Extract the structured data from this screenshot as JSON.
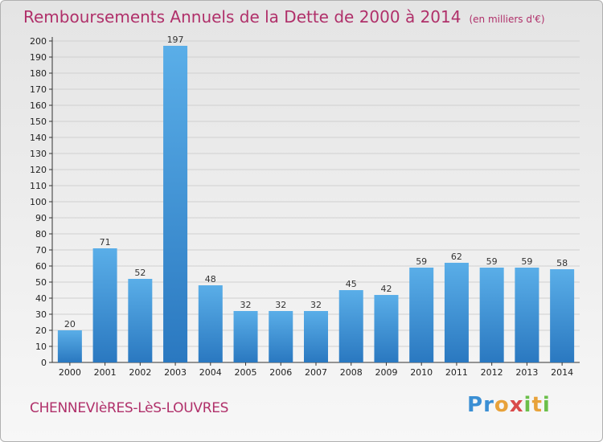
{
  "header": {
    "title": "Remboursements Annuels de la Dette de 2000 à 2014",
    "unit": "(en milliers d'€)"
  },
  "footer": {
    "commune": "CHENNEVIèRES-LèS-LOUVRES",
    "logo": [
      "P",
      "r",
      "o",
      "x",
      "i",
      "t",
      "i"
    ]
  },
  "colors": {
    "title": "#b0306a",
    "bar_top": "#5aaee8",
    "bar_bottom": "#2a78c0",
    "grid": "#d0d0d0"
  },
  "chart_data": {
    "type": "bar",
    "title": "Remboursements Annuels de la Dette de 2000 à 2014",
    "categories": [
      "2000",
      "2001",
      "2002",
      "2003",
      "2004",
      "2005",
      "2006",
      "2007",
      "2008",
      "2009",
      "2010",
      "2011",
      "2012",
      "2013",
      "2014"
    ],
    "values": [
      20,
      71,
      52,
      197,
      48,
      32,
      32,
      32,
      45,
      42,
      59,
      62,
      59,
      59,
      58
    ],
    "ylim": [
      0,
      200
    ],
    "yticks": [
      0,
      10,
      20,
      30,
      40,
      50,
      60,
      70,
      80,
      90,
      100,
      110,
      120,
      130,
      140,
      150,
      160,
      170,
      180,
      190,
      200
    ],
    "grid": true,
    "legend": "none"
  }
}
